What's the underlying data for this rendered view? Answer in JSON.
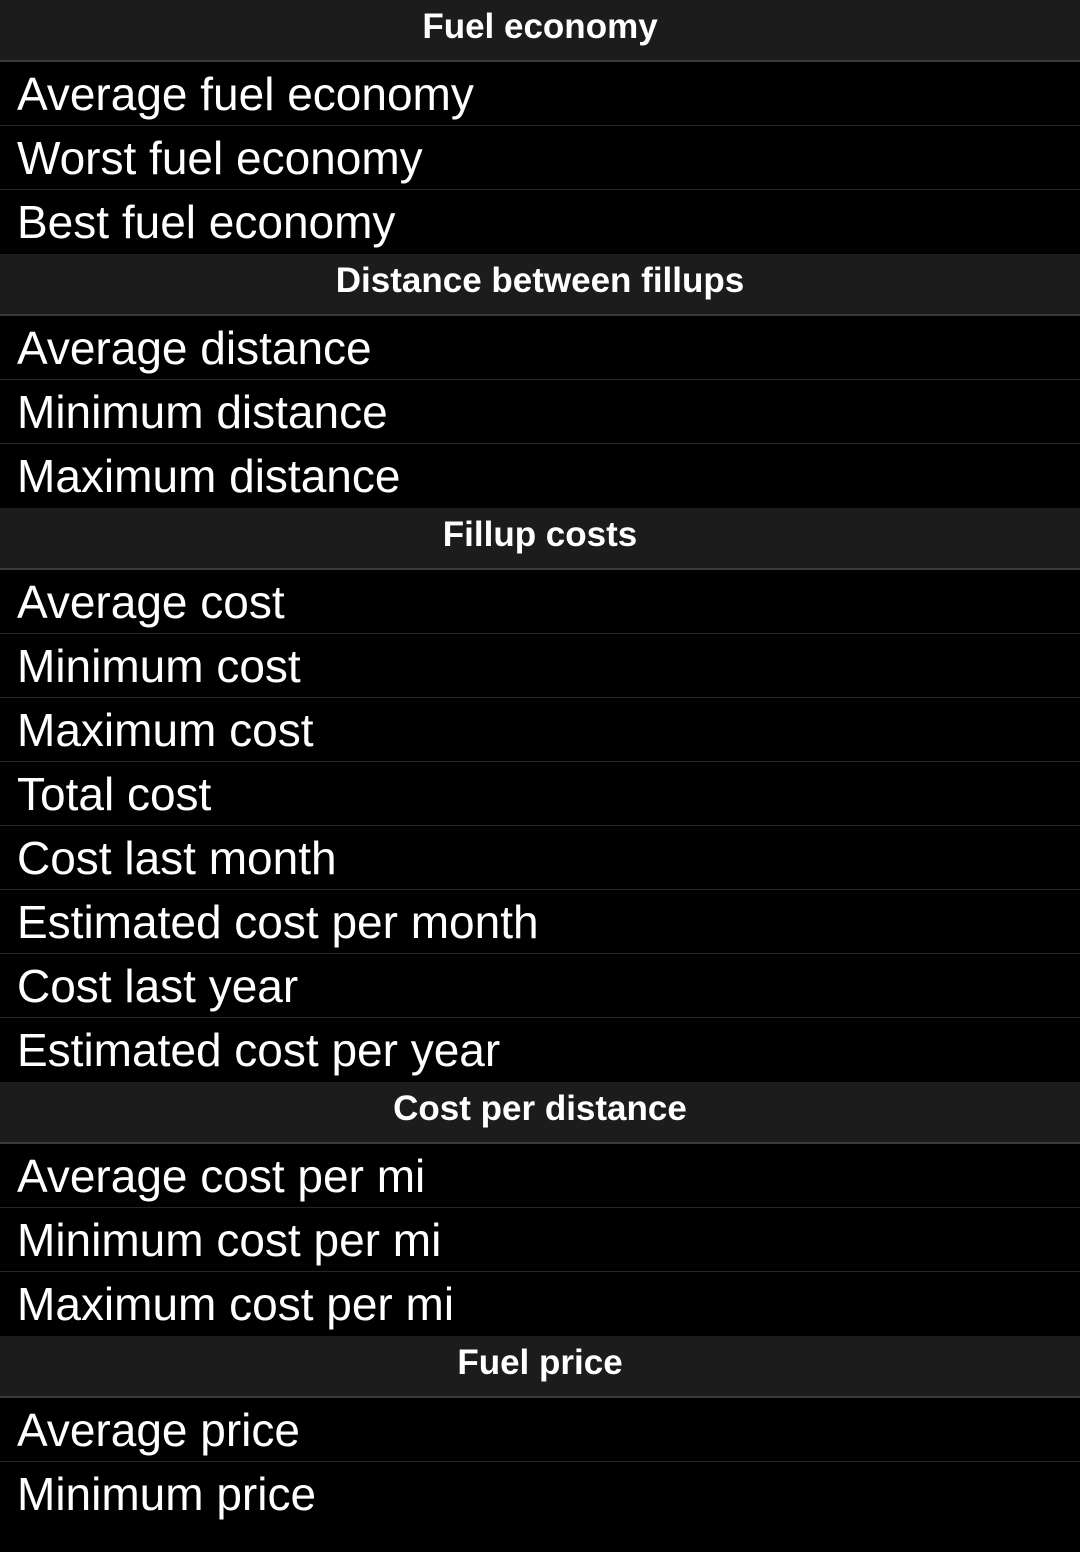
{
  "sections": [
    {
      "title": "Fuel economy",
      "items": [
        "Average fuel economy",
        "Worst fuel economy",
        "Best fuel economy"
      ]
    },
    {
      "title": "Distance between fillups",
      "items": [
        "Average distance",
        "Minimum distance",
        "Maximum distance"
      ]
    },
    {
      "title": "Fillup costs",
      "items": [
        "Average cost",
        "Minimum cost",
        "Maximum cost",
        "Total cost",
        "Cost last month",
        "Estimated cost per month",
        "Cost last year",
        "Estimated cost per year"
      ]
    },
    {
      "title": "Cost per distance",
      "items": [
        "Average cost per mi",
        "Minimum cost per mi",
        "Maximum cost per mi"
      ]
    },
    {
      "title": "Fuel price",
      "items": [
        "Average price",
        "Minimum price"
      ]
    }
  ],
  "colors": {
    "background": "#000000",
    "header_background": "#1c1c1c",
    "divider": "#262626",
    "text": "#ffffff"
  }
}
